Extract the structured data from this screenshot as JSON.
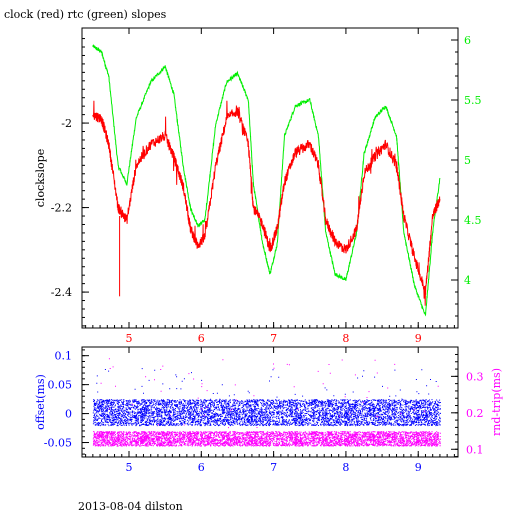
{
  "page": {
    "title": "clock (red) rtc (green) slopes",
    "footer": "2013-08-04 dilston"
  },
  "colors": {
    "clock": "#ff0000",
    "rtc": "#00ee00",
    "offset": "#0000ff",
    "rndtrip": "#ff00ff",
    "axis": "#000000"
  },
  "chart_data": [
    {
      "type": "line",
      "title": "clock (red) rtc (green) slopes",
      "xlabel": "",
      "ylabel": "clockslope",
      "xlim": [
        4.35,
        9.55
      ],
      "ylim": [
        -2.485,
        -1.775
      ],
      "xticks": [
        "5",
        "6",
        "7",
        "8",
        "9"
      ],
      "yticks_left": [
        "-2",
        "-2.2",
        "-2.4"
      ],
      "y2label": "",
      "y2lim": [
        3.6,
        6.1
      ],
      "yticks_right": [
        "4",
        "4.5",
        "5",
        "5.5",
        "6"
      ],
      "grid": false,
      "legend": "none",
      "series": [
        {
          "name": "clock",
          "axis": "left",
          "x": [
            4.5,
            4.62,
            4.72,
            4.85,
            4.97,
            5.1,
            5.3,
            5.5,
            5.62,
            5.75,
            5.85,
            5.95,
            6.05,
            6.2,
            6.35,
            6.5,
            6.65,
            6.72,
            6.85,
            6.95,
            7.05,
            7.15,
            7.3,
            7.5,
            7.62,
            7.72,
            7.85,
            8.0,
            8.15,
            8.25,
            8.4,
            8.55,
            8.7,
            8.8,
            8.95,
            9.1,
            9.2,
            9.3
          ],
          "y": [
            -1.98,
            -1.99,
            -2.05,
            -2.2,
            -2.23,
            -2.1,
            -2.05,
            -2.03,
            -2.08,
            -2.15,
            -2.25,
            -2.29,
            -2.27,
            -2.1,
            -1.99,
            -1.97,
            -2.05,
            -2.2,
            -2.24,
            -2.3,
            -2.25,
            -2.14,
            -2.07,
            -2.05,
            -2.1,
            -2.23,
            -2.28,
            -2.3,
            -2.25,
            -2.12,
            -2.08,
            -2.05,
            -2.1,
            -2.22,
            -2.32,
            -2.4,
            -2.22,
            -2.18
          ]
        },
        {
          "name": "rtc",
          "axis": "right",
          "x": [
            4.5,
            4.62,
            4.72,
            4.85,
            4.97,
            5.1,
            5.3,
            5.5,
            5.62,
            5.75,
            5.85,
            5.95,
            6.05,
            6.2,
            6.35,
            6.5,
            6.65,
            6.72,
            6.85,
            6.95,
            7.05,
            7.15,
            7.3,
            7.5,
            7.62,
            7.72,
            7.85,
            8.0,
            8.15,
            8.25,
            8.4,
            8.55,
            8.7,
            8.8,
            8.95,
            9.1,
            9.2,
            9.3
          ],
          "y": [
            5.95,
            5.9,
            5.7,
            4.95,
            4.8,
            5.35,
            5.65,
            5.78,
            5.55,
            4.95,
            4.6,
            4.45,
            4.5,
            5.3,
            5.65,
            5.72,
            5.5,
            4.8,
            4.3,
            4.05,
            4.3,
            5.2,
            5.45,
            5.5,
            5.2,
            4.4,
            4.05,
            4.0,
            4.4,
            5.05,
            5.35,
            5.45,
            5.2,
            4.4,
            3.95,
            3.7,
            4.4,
            4.85
          ]
        }
      ]
    },
    {
      "type": "scatter",
      "title": "",
      "xlabel": "",
      "ylabel": "offset(ms)",
      "y2label": "rnd-trip(ms)",
      "xlim": [
        4.35,
        9.55
      ],
      "ylim": [
        -0.075,
        0.115
      ],
      "y2lim": [
        0.0788,
        0.3805
      ],
      "xticks": [
        "5",
        "6",
        "7",
        "8",
        "9"
      ],
      "yticks_left": [
        "0.1",
        "0.05",
        "0",
        "-0.05"
      ],
      "yticks_right": [
        "0.3",
        "0.2",
        "0.1"
      ],
      "grid": false,
      "legend": "none",
      "series": [
        {
          "name": "offset",
          "axis": "left",
          "x_range": [
            4.5,
            9.3
          ],
          "y_band": [
            -0.02,
            0.025
          ]
        },
        {
          "name": "rnd-trip",
          "axis": "right",
          "x_range": [
            4.5,
            9.3
          ],
          "y_band": [
            0.11,
            0.15
          ]
        }
      ]
    }
  ]
}
